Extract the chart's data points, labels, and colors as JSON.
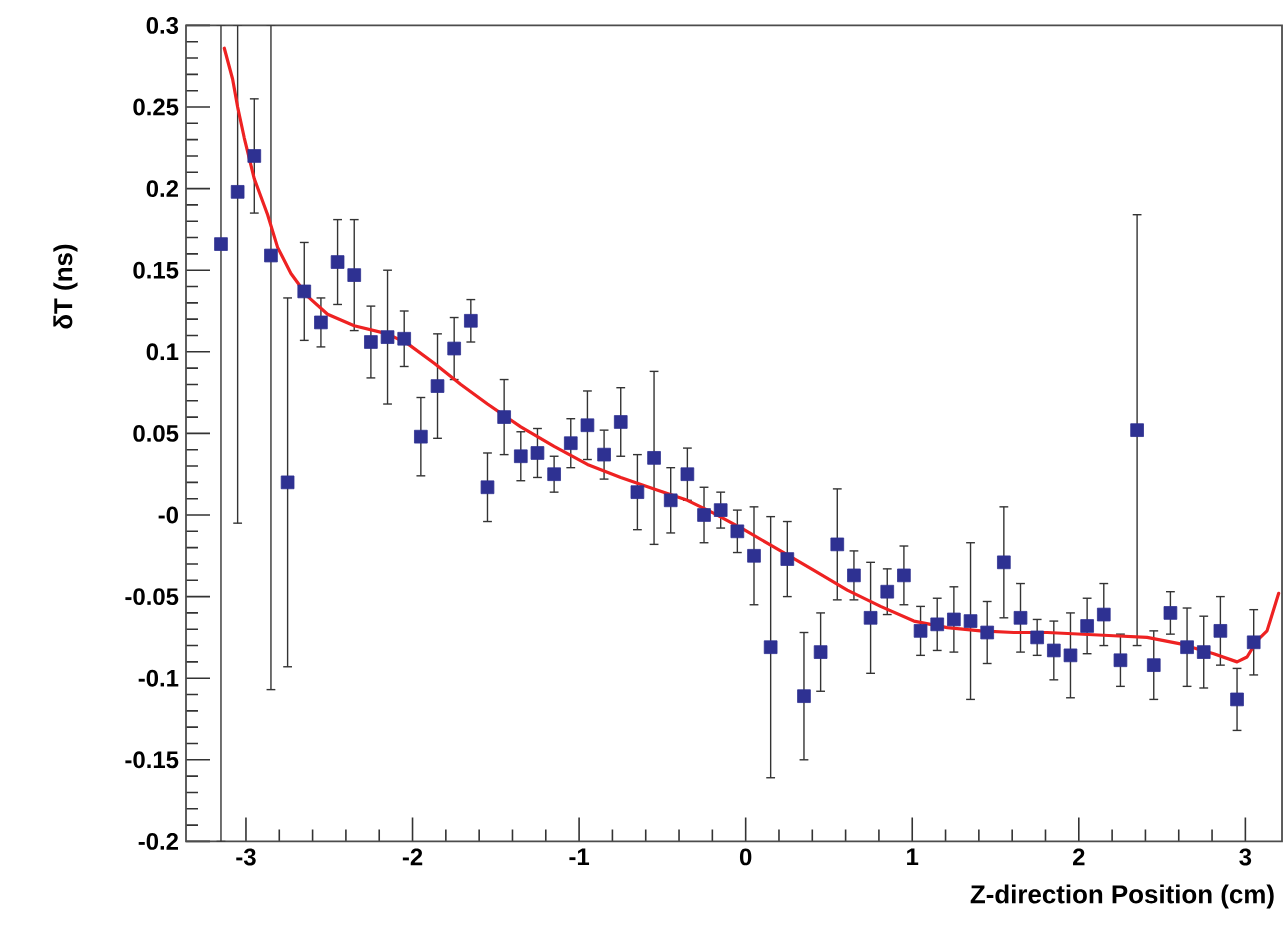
{
  "chart_data": {
    "type": "scatter",
    "xlabel": "Z-direction Position (cm)",
    "ylabel": "δT (ns)",
    "xlim": [
      -3.36,
      3.22
    ],
    "ylim": [
      -0.2,
      0.3
    ],
    "xticks": [
      -3,
      -2,
      -1,
      0,
      1,
      2,
      3
    ],
    "yticks": [
      -0.2,
      -0.15,
      -0.1,
      -0.05,
      {
        "value": 0,
        "label": "-0"
      },
      0.05,
      0.1,
      0.15,
      0.2,
      0.25,
      0.3
    ],
    "grid": false,
    "series": [
      {
        "color": "#2e3192",
        "marker": "square",
        "x": [
          -3.15,
          -3.05,
          -2.95,
          -2.85,
          -2.75,
          -2.65,
          -2.55,
          -2.45,
          -2.35,
          -2.25,
          -2.15,
          -2.05,
          -1.95,
          -1.85,
          -1.75,
          -1.65,
          -1.55,
          -1.45,
          -1.35,
          -1.25,
          -1.15,
          -1.05,
          -0.95,
          -0.85,
          -0.75,
          -0.65,
          -0.55,
          -0.45,
          -0.35,
          -0.25,
          -0.15,
          -0.05,
          0.05,
          0.15,
          0.25,
          0.35,
          0.45,
          0.55,
          0.65,
          0.75,
          0.85,
          0.95,
          1.05,
          1.15,
          1.25,
          1.35,
          1.45,
          1.55,
          1.65,
          1.75,
          1.85,
          1.95,
          2.05,
          2.15,
          2.25,
          2.35,
          2.45,
          2.55,
          2.65,
          2.75,
          2.85,
          2.95,
          3.05
        ],
        "values": [
          0.166,
          0.198,
          0.22,
          0.159,
          0.02,
          0.137,
          0.118,
          0.155,
          0.147,
          0.106,
          0.109,
          0.108,
          0.048,
          0.079,
          0.102,
          0.119,
          0.017,
          0.06,
          0.036,
          0.038,
          0.025,
          0.044,
          0.055,
          0.037,
          0.057,
          0.014,
          0.035,
          0.009,
          0.025,
          0.0,
          0.003,
          -0.01,
          -0.025,
          -0.081,
          -0.027,
          -0.111,
          -0.084,
          -0.018,
          -0.037,
          -0.063,
          -0.047,
          -0.037,
          -0.071,
          -0.067,
          -0.064,
          -0.065,
          -0.072,
          -0.029,
          -0.063,
          -0.075,
          -0.083,
          -0.086,
          -0.068,
          -0.061,
          -0.089,
          0.052,
          -0.092,
          -0.06,
          -0.081,
          -0.084,
          -0.071,
          -0.113,
          -0.078
        ],
        "errors": [
          [
            -0.2,
            0.3
          ],
          [
            -0.005,
            0.3
          ],
          0.035,
          [
            -0.107,
            0.3
          ],
          0.113,
          0.03,
          0.015,
          0.026,
          0.034,
          0.022,
          0.041,
          0.017,
          0.024,
          0.032,
          0.019,
          0.013,
          0.021,
          0.023,
          0.015,
          0.015,
          0.011,
          0.015,
          0.021,
          0.015,
          0.021,
          0.023,
          0.053,
          0.02,
          0.016,
          0.017,
          0.011,
          0.013,
          0.03,
          0.08,
          0.023,
          0.039,
          0.024,
          0.034,
          0.015,
          0.034,
          0.014,
          0.018,
          0.015,
          0.016,
          0.02,
          0.048,
          0.019,
          0.034,
          0.021,
          0.011,
          0.018,
          0.026,
          0.017,
          0.019,
          0.016,
          0.132,
          0.021,
          0.013,
          0.024,
          0.022,
          0.021,
          0.019,
          0.02
        ]
      },
      {
        "type": "line",
        "color": "#ee2222",
        "marker": "none",
        "line_style": "solid",
        "x": [
          -3.13,
          -3.08,
          -3.05,
          -3.01,
          -2.95,
          -2.87,
          -2.81,
          -2.73,
          -2.63,
          -2.51,
          -2.35,
          -2.15,
          -2.03,
          -1.87,
          -1.71,
          -1.55,
          -1.35,
          -1.15,
          -0.95,
          -0.75,
          -0.55,
          -0.35,
          -0.19,
          -0.01,
          0.21,
          0.41,
          0.61,
          0.81,
          1.01,
          1.21,
          1.41,
          1.61,
          1.81,
          2.01,
          2.21,
          2.41,
          2.61,
          2.81,
          2.95,
          3.01,
          3.07,
          3.13,
          3.2
        ],
        "values": [
          0.286,
          0.267,
          0.25,
          0.231,
          0.206,
          0.184,
          0.164,
          0.148,
          0.134,
          0.123,
          0.116,
          0.111,
          0.105,
          0.093,
          0.08,
          0.068,
          0.054,
          0.042,
          0.031,
          0.023,
          0.016,
          0.009,
          0.001,
          -0.009,
          -0.022,
          -0.034,
          -0.046,
          -0.056,
          -0.065,
          -0.069,
          -0.071,
          -0.072,
          -0.072,
          -0.073,
          -0.074,
          -0.075,
          -0.079,
          -0.085,
          -0.09,
          -0.087,
          -0.077,
          -0.071,
          -0.048
        ]
      }
    ]
  }
}
